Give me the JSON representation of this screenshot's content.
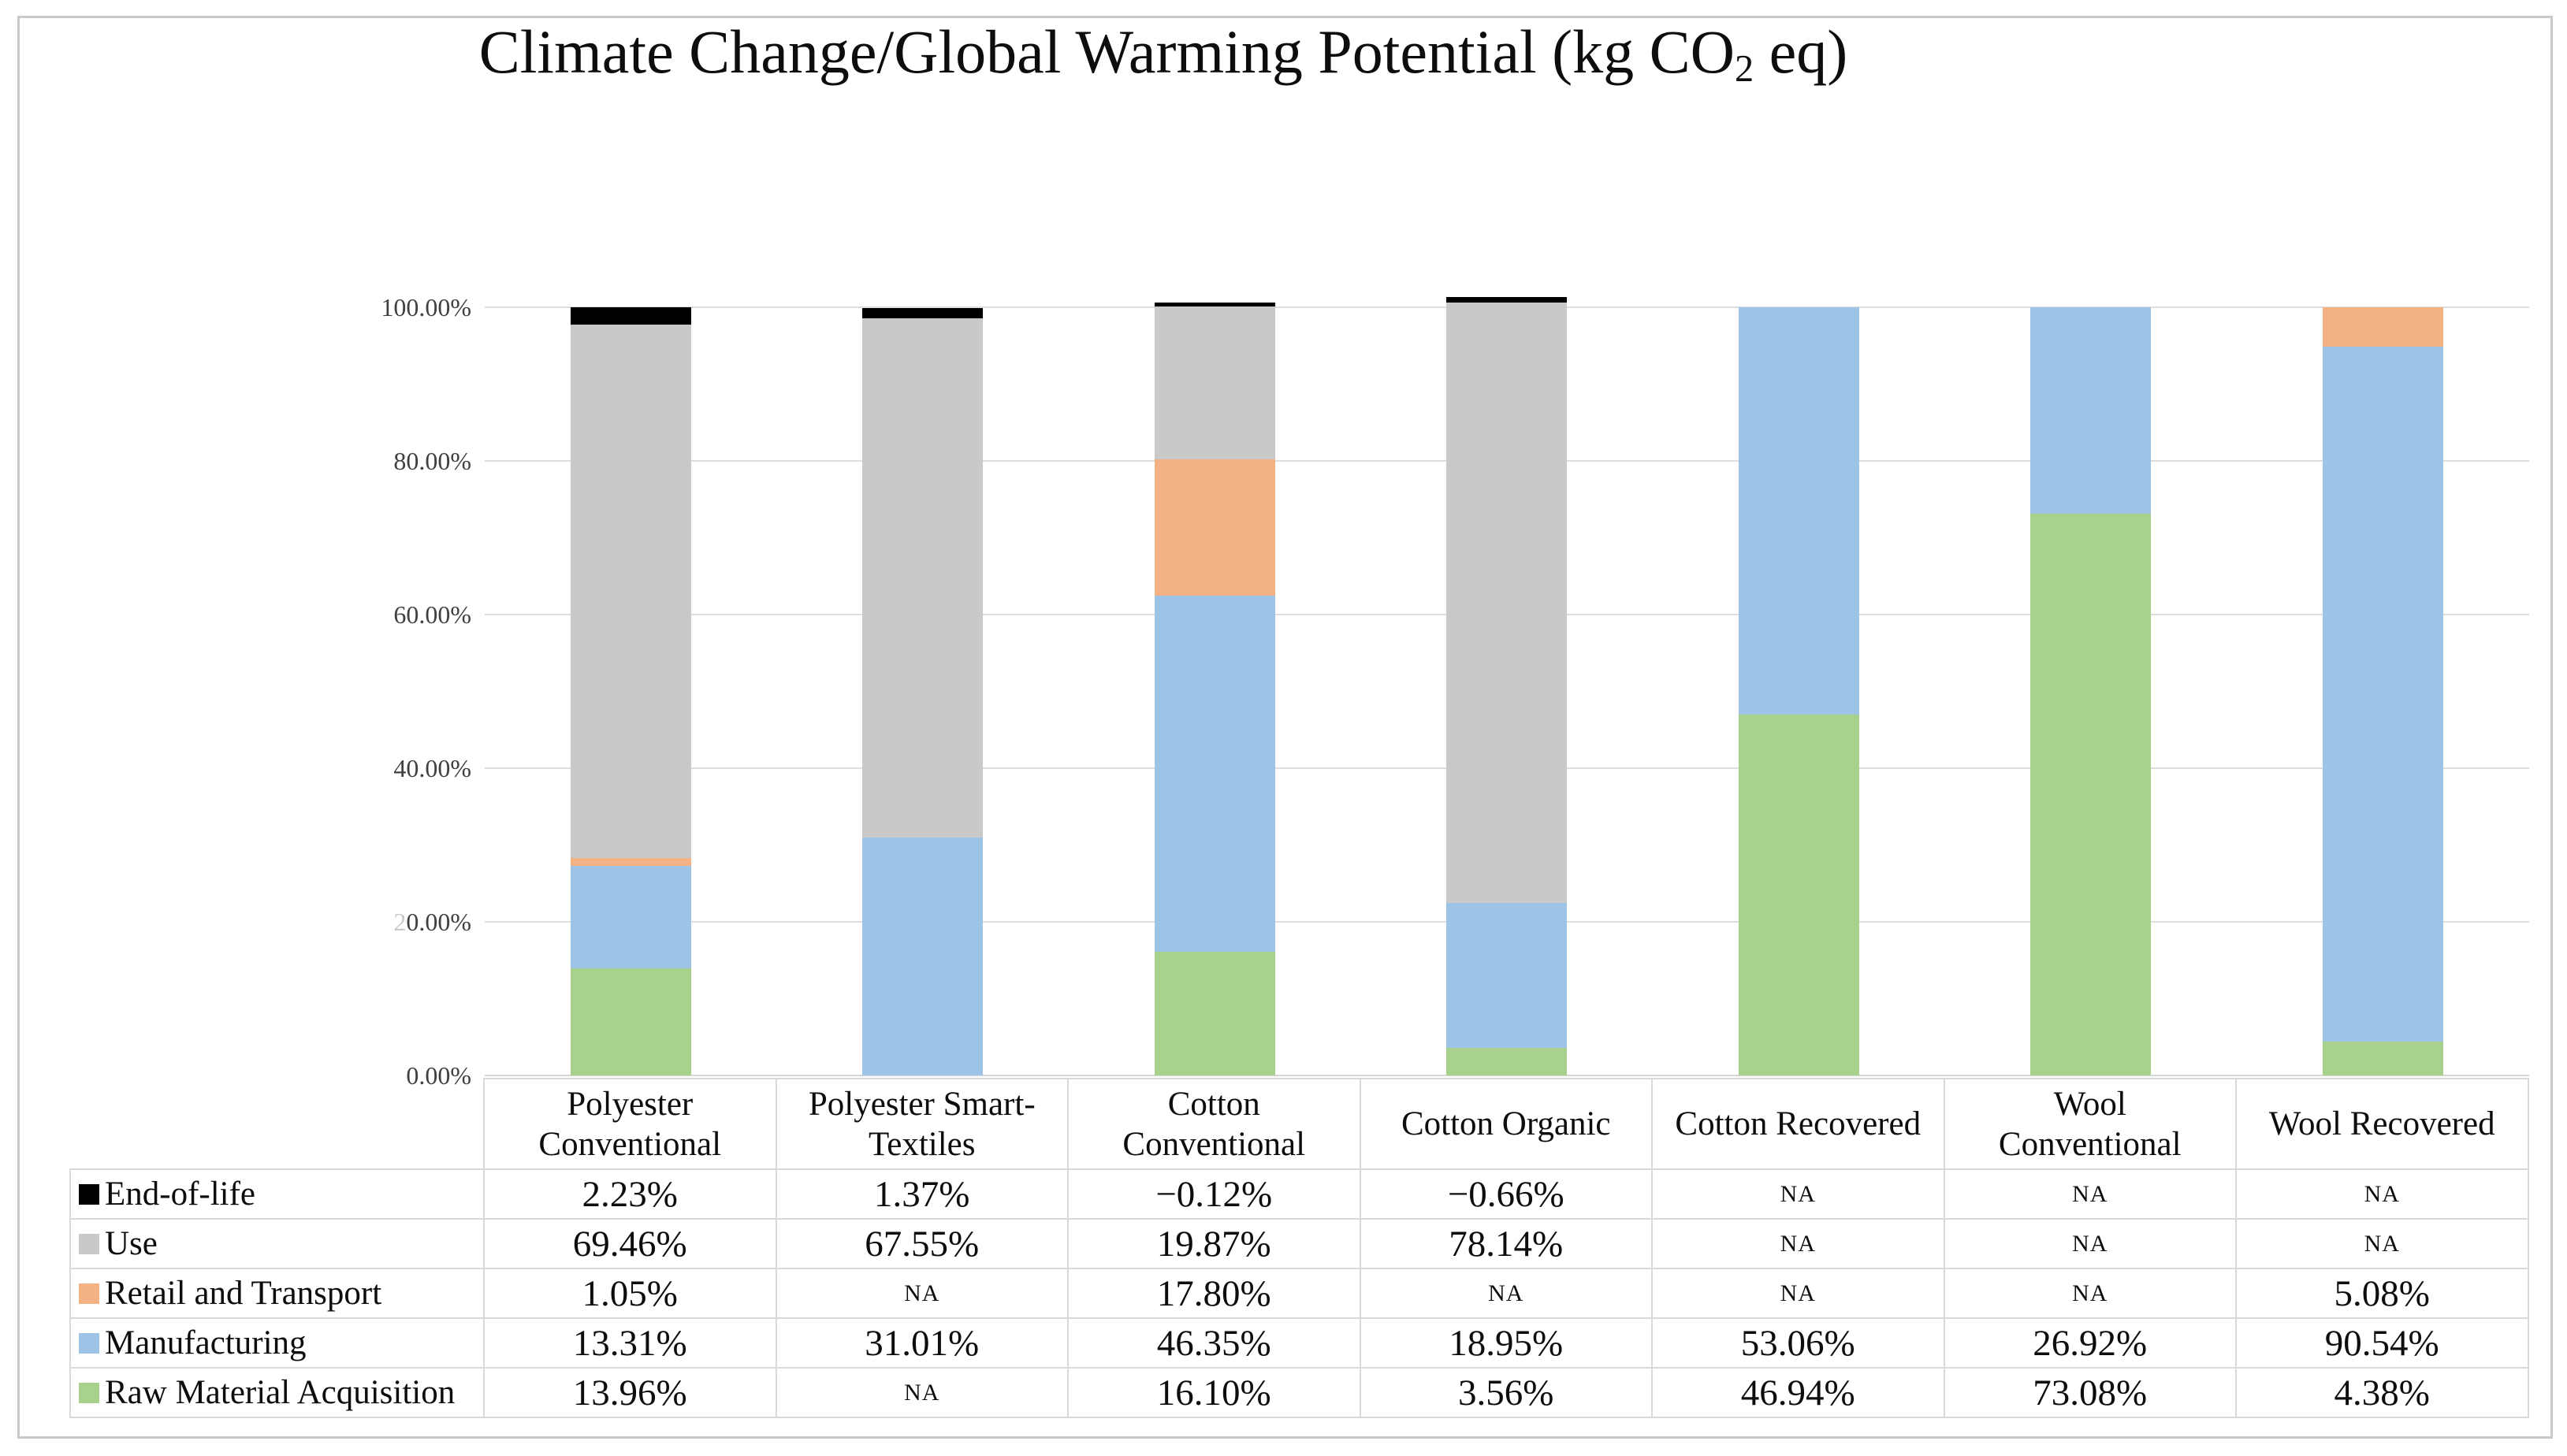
{
  "title_parts": {
    "main": "Climate Change/Global Warming Potential (kg CO",
    "sub": "2",
    "tail": " eq)"
  },
  "chart_data": {
    "type": "bar",
    "subtype": "percent-stacked-column",
    "title": "Climate Change/Global Warming Potential (kg CO2 eq)",
    "categories": [
      "Polyester Conventional",
      "Polyester Smart-Textiles",
      "Cotton Conventional",
      "Cotton Organic",
      "Cotton Recovered",
      "Wool Conventional",
      "Wool Recovered"
    ],
    "series": [
      {
        "name": "End-of-life",
        "color": "#000000",
        "values": [
          2.23,
          1.37,
          -0.12,
          -0.66,
          null,
          null,
          null
        ]
      },
      {
        "name": "Use",
        "color": "#c9c9c9",
        "values": [
          69.46,
          67.55,
          19.87,
          78.14,
          null,
          null,
          null
        ]
      },
      {
        "name": "Retail and Transport",
        "color": "#f4b183",
        "values": [
          1.05,
          null,
          17.8,
          null,
          null,
          null,
          5.08
        ]
      },
      {
        "name": "Manufacturing",
        "color": "#9dc3e6",
        "values": [
          13.31,
          31.01,
          46.35,
          18.95,
          53.06,
          26.92,
          90.54
        ]
      },
      {
        "name": "Raw Material Acquisition",
        "color": "#a9d18e",
        "values": [
          13.96,
          null,
          16.1,
          3.56,
          46.94,
          73.08,
          4.38
        ]
      }
    ],
    "stack_order_bottom_to_top": [
      "Raw Material Acquisition",
      "Manufacturing",
      "Retail and Transport",
      "Use",
      "End-of-life"
    ],
    "xlabel": "",
    "ylabel": "",
    "ylim": [
      0,
      100
    ],
    "y_ticks": [
      "0.00%",
      "20.00%",
      "40.00%",
      "60.00%",
      "80.00%",
      "100.00%"
    ],
    "grid": true,
    "gridline_color": "#dedede",
    "legend_position": "left column of attached data table"
  },
  "y_axis_display": {
    "ticks": [
      {
        "pct": 100,
        "pre": "",
        "label": "100.00%"
      },
      {
        "pct": 80,
        "pre": "",
        "label": "80.00%"
      },
      {
        "pct": 60,
        "pre": "",
        "label": "60.00%"
      },
      {
        "pct": 40,
        "pre": "",
        "label": "40.00%"
      },
      {
        "pct": 20,
        "pre": "2",
        "label": "0.00%"
      },
      {
        "pct": 0,
        "pre": "",
        "label": "0.00%"
      }
    ]
  },
  "table": {
    "header_lines": [
      [
        "Polyester",
        "Conventional"
      ],
      [
        "Polyester Smart-",
        "Textiles"
      ],
      [
        "Cotton",
        "Conventional"
      ],
      [
        "Cotton Organic"
      ],
      [
        "Cotton Recovered"
      ],
      [
        "Wool",
        "Conventional"
      ],
      [
        "Wool Recovered"
      ]
    ],
    "rows": [
      {
        "legend": "End-of-life",
        "swatch": "#000000",
        "cells": [
          "2.23%",
          "1.37%",
          "−0.12%",
          "−0.66%",
          "NA",
          "NA",
          "NA"
        ]
      },
      {
        "legend": "Use",
        "swatch": "#c9c9c9",
        "cells": [
          "69.46%",
          "67.55%",
          "19.87%",
          "78.14%",
          "NA",
          "NA",
          "NA"
        ]
      },
      {
        "legend": "Retail and Transport",
        "swatch": "#f4b183",
        "cells": [
          "1.05%",
          "NA",
          "17.80%",
          "NA",
          "NA",
          "NA",
          "5.08%"
        ]
      },
      {
        "legend": "Manufacturing",
        "swatch": "#9dc3e6",
        "cells": [
          "13.31%",
          "31.01%",
          "46.35%",
          "18.95%",
          "53.06%",
          "26.92%",
          "90.54%"
        ]
      },
      {
        "legend": "Raw Material Acquisition",
        "swatch": "#a9d18e",
        "cells": [
          "13.96%",
          "NA",
          "16.10%",
          "3.56%",
          "46.94%",
          "73.08%",
          "4.38%"
        ]
      }
    ]
  },
  "colors": {
    "end_of_life": "#000000",
    "use": "#c9c9c9",
    "retail_and_transport": "#f4b183",
    "manufacturing": "#9dc3e6",
    "raw_material_acquisition": "#a9d18e",
    "gridline": "#dedede",
    "table_border": "#d9d9d9",
    "figure_border": "#c9c9c9"
  }
}
